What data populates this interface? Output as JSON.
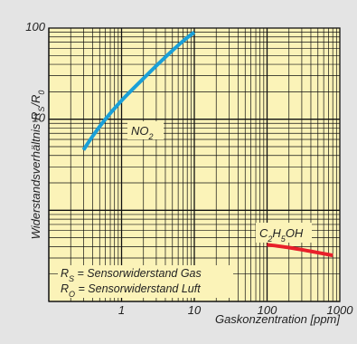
{
  "chart_data": {
    "type": "line",
    "xlabel": "Gaskonzentration [ppm]",
    "ylabel_parts": {
      "main": "Widerstandsverhältnis R",
      "sub1": "S",
      "mid": "/R",
      "sub2": "0"
    },
    "x_scale": "log",
    "y_scale": "log",
    "xlim": [
      0.1,
      1000
    ],
    "ylim": [
      0.1,
      100
    ],
    "x_ticks": [
      {
        "value": 1,
        "label": "1"
      },
      {
        "value": 10,
        "label": "10"
      },
      {
        "value": 100,
        "label": "100"
      },
      {
        "value": 1000,
        "label": "1000"
      }
    ],
    "y_ticks": [
      {
        "value": 10,
        "label": "10"
      },
      {
        "value": 100,
        "label": "100"
      }
    ],
    "grid": true,
    "plot_background": "#fbf3b8",
    "series": [
      {
        "name_parts": [
          [
            "NO",
            ""
          ],
          [
            "2",
            "sub"
          ]
        ],
        "color": "#1aa0d8",
        "x": [
          0.3,
          0.4,
          0.6,
          1,
          2,
          4,
          7,
          10
        ],
        "y": [
          4.6,
          6.5,
          10,
          16,
          28,
          48,
          72,
          90
        ]
      },
      {
        "name_parts": [
          [
            "C",
            ""
          ],
          [
            "2",
            "sub"
          ],
          [
            "H",
            ""
          ],
          [
            "5",
            "sub"
          ],
          [
            "OH",
            ""
          ]
        ],
        "color": "#e8202a",
        "x": [
          100,
          200,
          400,
          800
        ],
        "y": [
          0.42,
          0.39,
          0.355,
          0.32
        ]
      }
    ],
    "legend": {
      "lines": [
        {
          "prefix": "R",
          "sub": "S",
          "text": " = Sensorwiderstand Gas"
        },
        {
          "prefix": "R",
          "sub": "O",
          "text": " = Sensorwiderstand Luft"
        }
      ]
    }
  }
}
